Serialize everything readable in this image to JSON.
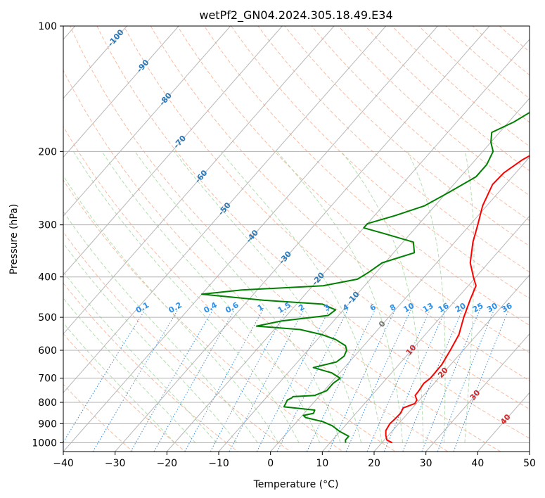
{
  "chart_data": {
    "type": "line",
    "title": "wetPf2_GN04.2024.305.18.49.E34",
    "xlabel": "Temperature (°C)",
    "ylabel": "Pressure (hPa)",
    "xlim": [
      -40,
      50
    ],
    "ylim": [
      1050,
      100
    ],
    "y_scale": "log",
    "grid": true,
    "x_ticks": [
      "−40",
      "−30",
      "−20",
      "−10",
      "0",
      "10",
      "20",
      "30",
      "40",
      "50"
    ],
    "x_tick_values": [
      -40,
      -30,
      -20,
      -10,
      0,
      10,
      20,
      30,
      40,
      50
    ],
    "y_ticks": [
      "100",
      "200",
      "300",
      "400",
      "500",
      "600",
      "700",
      "800",
      "900",
      "1000"
    ],
    "y_tick_values": [
      100,
      200,
      300,
      400,
      500,
      600,
      700,
      800,
      900,
      1000
    ],
    "series": [
      {
        "color": "#ff0000",
        "points": [
          [
            1000,
            22
          ],
          [
            985,
            20.5
          ],
          [
            960,
            19.5
          ],
          [
            935,
            18.7
          ],
          [
            900,
            18.3
          ],
          [
            875,
            18.5
          ],
          [
            850,
            18.6
          ],
          [
            825,
            18.2
          ],
          [
            805,
            19.7
          ],
          [
            790,
            19.5
          ],
          [
            770,
            18.4
          ],
          [
            750,
            18.3
          ],
          [
            720,
            18.0
          ],
          [
            700,
            18.4
          ],
          [
            650,
            18.3
          ],
          [
            600,
            17.5
          ],
          [
            550,
            16.5
          ],
          [
            500,
            14.5
          ],
          [
            460,
            13.0
          ],
          [
            455,
            12.8
          ],
          [
            420,
            11.5
          ],
          [
            400,
            9.5
          ],
          [
            370,
            6.5
          ],
          [
            330,
            3.5
          ],
          [
            300,
            1.5
          ],
          [
            270,
            -0.8
          ],
          [
            240,
            -2.5
          ],
          [
            225,
            -2.3
          ],
          [
            210,
            -1.0
          ],
          [
            200,
            0.5
          ],
          [
            185,
            2.5
          ],
          [
            170,
            4.2
          ],
          [
            150,
            4.0
          ],
          [
            135,
            3.3
          ],
          [
            125,
            4.0
          ],
          [
            115,
            5.8
          ],
          [
            100,
            8.0
          ]
        ]
      },
      {
        "color": "#008000",
        "points": [
          [
            1000,
            13
          ],
          [
            985,
            12.5
          ],
          [
            965,
            12.5
          ],
          [
            940,
            10.0
          ],
          [
            910,
            7.5
          ],
          [
            890,
            5.0
          ],
          [
            870,
            1.0
          ],
          [
            860,
            0.2
          ],
          [
            850,
            1.8
          ],
          [
            835,
            1.5
          ],
          [
            820,
            -5.0
          ],
          [
            790,
            -5.5
          ],
          [
            780,
            -5.0
          ],
          [
            775,
            -5.0
          ],
          [
            770,
            -1.0
          ],
          [
            750,
            0.5
          ],
          [
            720,
            0.5
          ],
          [
            700,
            1.0
          ],
          [
            680,
            -1.5
          ],
          [
            660,
            -6.0
          ],
          [
            640,
            -2.5
          ],
          [
            620,
            -2.0
          ],
          [
            600,
            -2.5
          ],
          [
            585,
            -3.5
          ],
          [
            565,
            -6.5
          ],
          [
            550,
            -10.0
          ],
          [
            535,
            -15.0
          ],
          [
            525,
            -24.0
          ],
          [
            510,
            -20.0
          ],
          [
            495,
            -12.0
          ],
          [
            480,
            -11.5
          ],
          [
            465,
            -15.0
          ],
          [
            455,
            -27.0
          ],
          [
            440,
            -40.0
          ],
          [
            430,
            -33.0
          ],
          [
            420,
            -18.0
          ],
          [
            405,
            -12.5
          ],
          [
            390,
            -11.5
          ],
          [
            370,
            -10.5
          ],
          [
            350,
            -6.0
          ],
          [
            330,
            -8.0
          ],
          [
            315,
            -15.0
          ],
          [
            305,
            -20.0
          ],
          [
            298,
            -20.0
          ],
          [
            285,
            -16.0
          ],
          [
            270,
            -12.0
          ],
          [
            250,
            -9.5
          ],
          [
            230,
            -7.0
          ],
          [
            215,
            -7.0
          ],
          [
            200,
            -8.0
          ],
          [
            190,
            -10.0
          ],
          [
            180,
            -11.5
          ],
          [
            170,
            -9.0
          ],
          [
            155,
            -6.5
          ],
          [
            140,
            -3.5
          ],
          [
            125,
            0.0
          ],
          [
            110,
            3.0
          ],
          [
            100,
            6.0
          ]
        ]
      }
    ],
    "dry_adiabat_labels": [],
    "isotherm_labels": [
      "-100",
      "-90",
      "-80",
      "-70",
      "-60",
      "-50",
      "-40",
      "-30",
      "-20",
      "-10",
      "0",
      "10",
      "20",
      "30",
      "40"
    ],
    "mixing_ratio_labels": [
      "0.1",
      "0.2",
      "0.4",
      "0.6",
      "1",
      "1.5",
      "2",
      "3",
      "4",
      "6",
      "8",
      "10",
      "13",
      "16",
      "20",
      "25",
      "30",
      "36"
    ],
    "colors": {
      "skew_isotherm": "#aaaaaa",
      "grid": "#b0b0b0",
      "dry_adiabat": "#f4a582",
      "moist_adiabat": "#a6d8a0",
      "mixing_ratio": "#3a8fd8",
      "isotherm_label_cold": "#2a77b8",
      "isotherm_label_zero": "#777777",
      "isotherm_label_warm": "#d62728",
      "mixing_ratio_label": "#2a8fe8"
    }
  }
}
